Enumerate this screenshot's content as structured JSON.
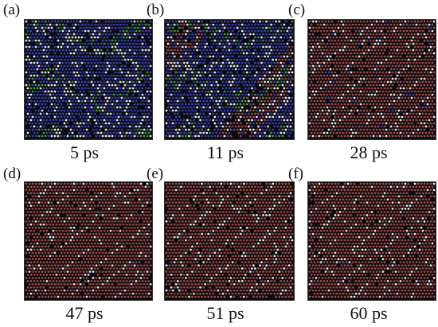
{
  "figure": {
    "panels": [
      {
        "label": "(a)",
        "time": "5 ps",
        "dominant_phase": "blue"
      },
      {
        "label": "(b)",
        "time": "11 ps",
        "dominant_phase": "blue"
      },
      {
        "label": "(c)",
        "time": "28 ps",
        "dominant_phase": "red"
      },
      {
        "label": "(d)",
        "time": "47 ps",
        "dominant_phase": "red"
      },
      {
        "label": "(e)",
        "time": "51 ps",
        "dominant_phase": "red"
      },
      {
        "label": "(f)",
        "time": "60 ps",
        "dominant_phase": "red"
      }
    ],
    "colors": {
      "blue_phase": "#3a3fa8",
      "red_phase": "#9a4a3e",
      "green_phase": "#3a9a3a",
      "boundary_atoms": "#e8e8e8",
      "background": "#0b0b12"
    }
  }
}
